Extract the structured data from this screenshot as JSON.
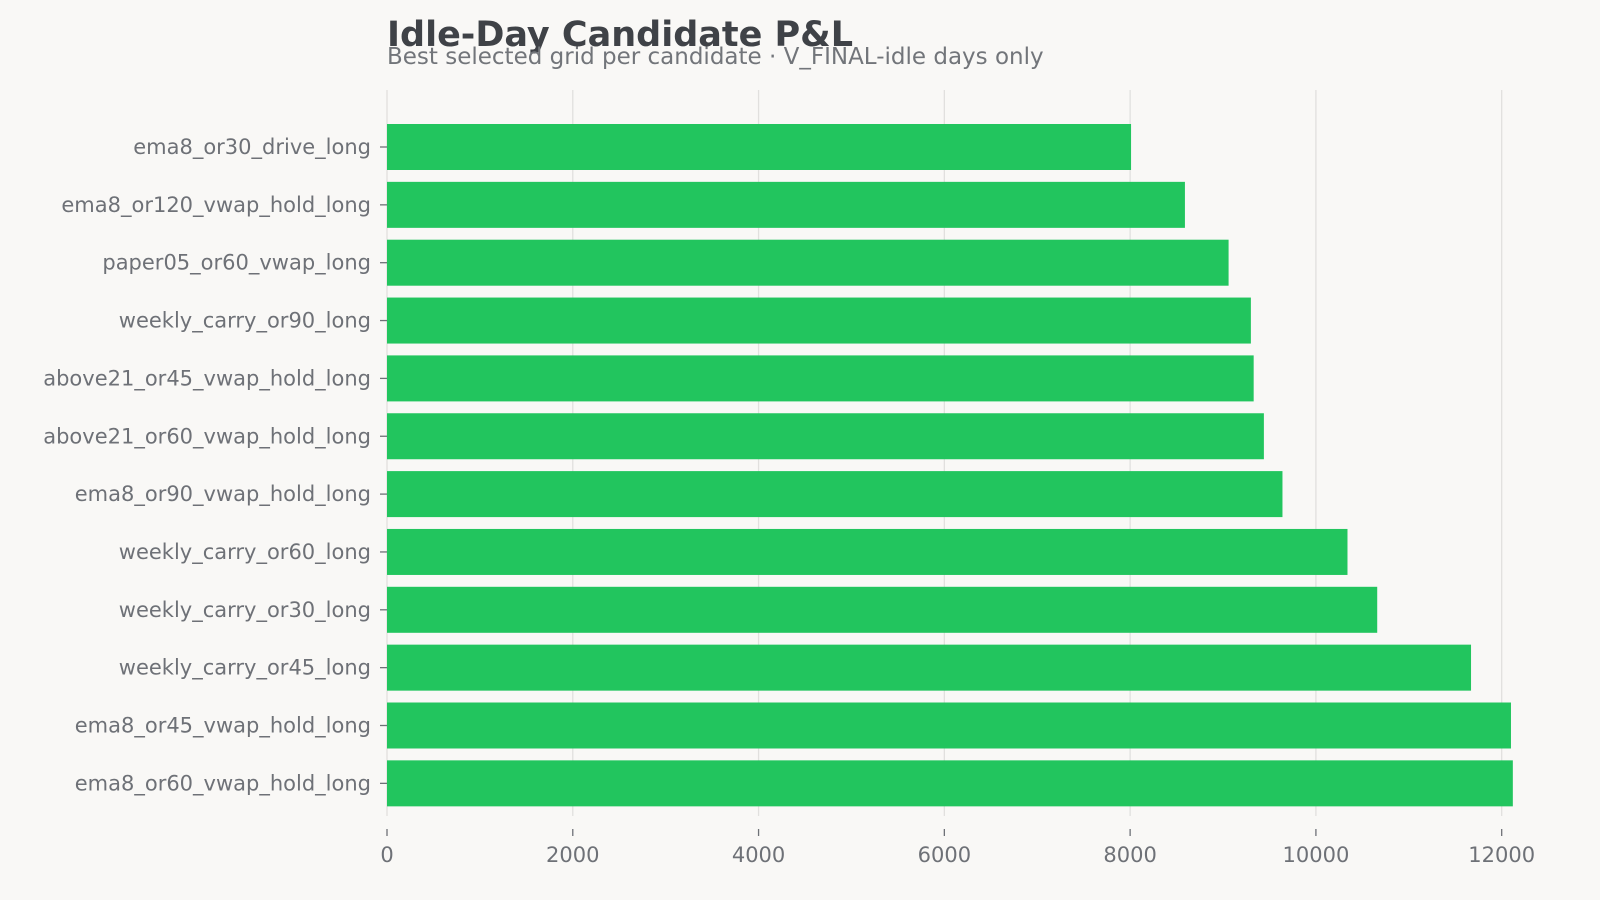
{
  "chart_data": {
    "type": "bar",
    "orientation": "horizontal",
    "title": "Idle-Day Candidate P&L",
    "subtitle": "Best selected grid per candidate · V_FINAL-idle days only",
    "xlabel": "",
    "ylabel": "",
    "categories": [
      "ema8_or30_drive_long",
      "ema8_or120_vwap_hold_long",
      "paper05_or60_vwap_long",
      "weekly_carry_or90_long",
      "above21_or45_vwap_hold_long",
      "above21_or60_vwap_hold_long",
      "ema8_or90_vwap_hold_long",
      "weekly_carry_or60_long",
      "weekly_carry_or30_long",
      "weekly_carry_or45_long",
      "ema8_or45_vwap_hold_long",
      "ema8_or60_vwap_hold_long"
    ],
    "values": [
      8010,
      8590,
      9060,
      9300,
      9330,
      9440,
      9640,
      10340,
      10660,
      11670,
      12100,
      12120
    ],
    "xlim": [
      0,
      12800
    ],
    "xticks": [
      0,
      2000,
      4000,
      6000,
      8000,
      10000,
      12000
    ],
    "grid": true,
    "legend": "none",
    "bar_color": "#22c55e",
    "grid_color": "#e1e0de",
    "background": "#f9f8f6"
  }
}
